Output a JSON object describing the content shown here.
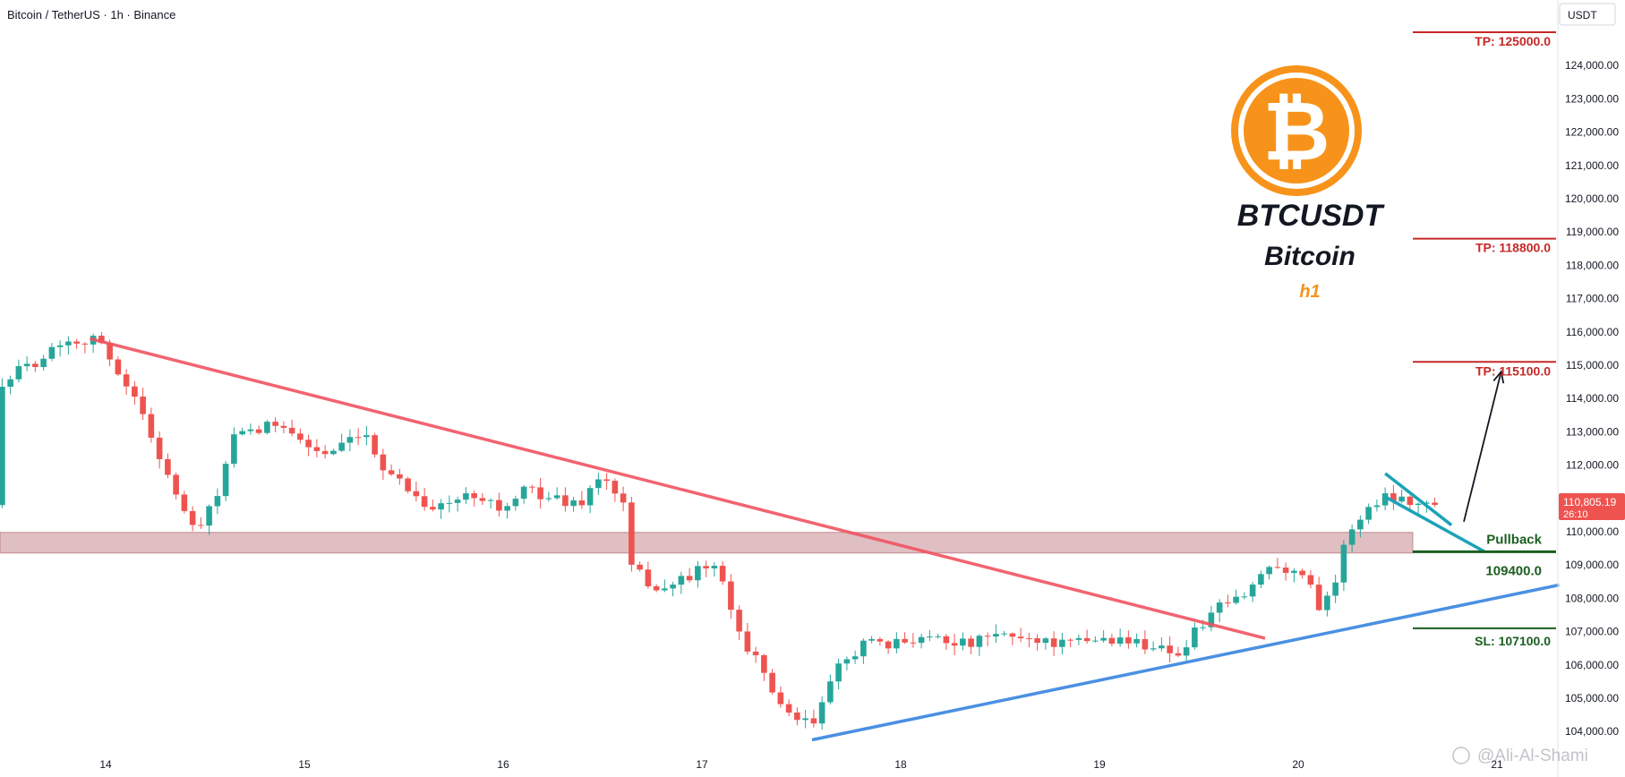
{
  "header": {
    "symbol_line": "Bitcoin / TetherUS · 1h · Binance"
  },
  "overlay": {
    "ticker": "BTCUSDT",
    "name": "Bitcoin",
    "timeframe": "h1",
    "logo_symbol": "₿"
  },
  "axis": {
    "currency": "USDT",
    "last_price": "110,805.19",
    "countdown": "26:10",
    "watermark": "@Ali-Al-Shami"
  },
  "levels": {
    "tp3": "TP: 125000.0",
    "tp2": "TP: 118800.0",
    "tp1": "TP: 115100.0",
    "pullback_label": "Pullback",
    "pullback_value": "109400.0",
    "sl": "SL: 107100.0"
  },
  "colors": {
    "up": "#26a69a",
    "down": "#ef5350",
    "resistance_line": "#ef5360",
    "support_line": "#4a90e2",
    "zone": "#c48b8f",
    "tp_line": "#c62828",
    "sl_line": "#1b5e20",
    "channel": "#1ba3b8",
    "logo": "#f7931a"
  },
  "chart_data": {
    "type": "candlestick",
    "title": "Bitcoin / TetherUS · 1h · Binance",
    "ylabel": "USDT",
    "ylim": [
      103600,
      125300
    ],
    "y_ticks": [
      104000,
      105000,
      106000,
      107000,
      108000,
      109000,
      110000,
      111000,
      112000,
      113000,
      114000,
      115000,
      116000,
      117000,
      118000,
      119000,
      120000,
      121000,
      122000,
      123000,
      124000
    ],
    "x_ticks": [
      {
        "label": "14",
        "pos": 0.0
      },
      {
        "label": "15",
        "pos": 24.0
      },
      {
        "label": "16",
        "pos": 48.0
      },
      {
        "label": "17",
        "pos": 72.0
      },
      {
        "label": "18",
        "pos": 96.0
      },
      {
        "label": "19",
        "pos": 120.0
      },
      {
        "label": "20",
        "pos": 144.0
      },
      {
        "label": "21",
        "pos": 168.0
      }
    ],
    "anchors": [
      [
        -12.7,
        114500
      ],
      [
        -8,
        115200
      ],
      [
        -5,
        115800
      ],
      [
        -3,
        115700
      ],
      [
        -1.5,
        115900
      ],
      [
        3,
        114300
      ],
      [
        6,
        112600
      ],
      [
        9.5,
        110500
      ],
      [
        11,
        110000
      ],
      [
        13,
        110800
      ],
      [
        15.5,
        112800
      ],
      [
        19,
        113100
      ],
      [
        21.5,
        113300
      ],
      [
        24,
        112600
      ],
      [
        27,
        112300
      ],
      [
        31,
        112900
      ],
      [
        33.5,
        112000
      ],
      [
        36.5,
        111300
      ],
      [
        39.5,
        110700
      ],
      [
        42,
        110900
      ],
      [
        45,
        111200
      ],
      [
        48,
        110600
      ],
      [
        51,
        111300
      ],
      [
        54,
        111000
      ],
      [
        57,
        110800
      ],
      [
        60,
        111700
      ],
      [
        62.5,
        110800
      ],
      [
        63.5,
        108900
      ],
      [
        67,
        108200
      ],
      [
        70.5,
        108700
      ],
      [
        73.5,
        109000
      ],
      [
        76.5,
        107000
      ],
      [
        79.5,
        105700
      ],
      [
        82.5,
        104400
      ],
      [
        85.3,
        104200
      ],
      [
        88.5,
        105900
      ],
      [
        91.5,
        106700
      ],
      [
        94.5,
        106500
      ],
      [
        97,
        106800
      ],
      [
        100,
        106900
      ],
      [
        104,
        106600
      ],
      [
        108,
        106900
      ],
      [
        112,
        106800
      ],
      [
        116,
        106600
      ],
      [
        120,
        106800
      ],
      [
        124,
        106700
      ],
      [
        128,
        106500
      ],
      [
        130,
        106300
      ],
      [
        131.5,
        107000
      ],
      [
        134.5,
        107700
      ],
      [
        137.5,
        108100
      ],
      [
        140.5,
        109000
      ],
      [
        141.5,
        109100
      ],
      [
        143.5,
        108700
      ],
      [
        145,
        108800
      ],
      [
        146.5,
        107800
      ],
      [
        148.5,
        108500
      ],
      [
        150,
        110000
      ],
      [
        152.5,
        110700
      ],
      [
        154.5,
        111100
      ],
      [
        157,
        111000
      ],
      [
        158.5,
        110900
      ],
      [
        160.5,
        110800
      ]
    ],
    "last": 110805.19,
    "annotations": {
      "resistance_trendline": [
        [
          -1.9,
          115800
        ],
        [
          140,
          106800
        ]
      ],
      "support_trendline": [
        [
          85.3,
          103750
        ],
        [
          175.5,
          108400
        ]
      ],
      "zone": [
        109360,
        109980
      ],
      "channel_upper": [
        [
          154.5,
          111750
        ],
        [
          162.5,
          110200
        ]
      ],
      "channel_lower": [
        [
          154.5,
          111050
        ],
        [
          166.5,
          109400
        ]
      ],
      "arrow": [
        [
          164,
          110300
        ],
        [
          168.5,
          114800
        ]
      ],
      "tp_levels": [
        125000,
        118800,
        115100
      ],
      "pullback": 109400,
      "sl": 107100
    }
  }
}
